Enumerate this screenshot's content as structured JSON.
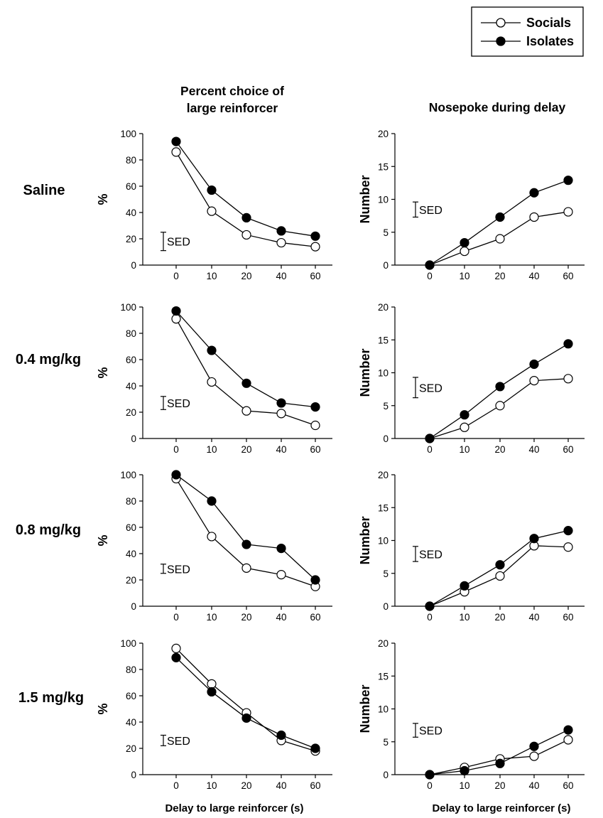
{
  "legend": {
    "items": [
      {
        "label": "Socials",
        "marker": "open-circle"
      },
      {
        "label": "Isolates",
        "marker": "filled-circle"
      }
    ]
  },
  "column_titles": {
    "left_line1": "Percent choice of",
    "left_line2": "large reinforcer",
    "right": "Nosepoke during delay"
  },
  "row_labels": [
    "Saline",
    "0.4 mg/kg",
    "0.8 mg/kg",
    "1.5 mg/kg"
  ],
  "axis_text": {
    "left_ylabel": "%",
    "right_ylabel": "Number",
    "xlabel": "Delay to large reinforcer (s)",
    "sed_label": "SED",
    "x_ticks": [
      "0",
      "10",
      "20",
      "40",
      "60"
    ],
    "left_yticks": [
      "0",
      "20",
      "40",
      "60",
      "80",
      "100"
    ],
    "right_yticks": [
      "0",
      "5",
      "10",
      "15",
      "20"
    ]
  },
  "colors": {
    "socials_fill": "#ffffff",
    "isolates_fill": "#000000",
    "line": "#000000"
  },
  "chart_data": [
    {
      "type": "line",
      "row": "Saline",
      "panel": "Percent choice of large reinforcer",
      "categories": [
        "0",
        "10",
        "20",
        "40",
        "60"
      ],
      "ylabel": "%",
      "ylim": [
        0,
        100
      ],
      "series": [
        {
          "name": "Socials",
          "values": [
            86,
            41,
            23,
            17,
            14
          ]
        },
        {
          "name": "Isolates",
          "values": [
            94,
            57,
            36,
            26,
            22
          ]
        }
      ],
      "sed": [
        11,
        25
      ]
    },
    {
      "type": "line",
      "row": "Saline",
      "panel": "Nosepoke during delay",
      "categories": [
        "0",
        "10",
        "20",
        "40",
        "60"
      ],
      "ylabel": "Number",
      "ylim": [
        0,
        20
      ],
      "series": [
        {
          "name": "Socials",
          "values": [
            0,
            2.1,
            4.0,
            7.3,
            8.1
          ]
        },
        {
          "name": "Isolates",
          "values": [
            0,
            3.4,
            7.3,
            11.0,
            12.9
          ]
        }
      ],
      "sed": [
        7.3,
        9.6
      ]
    },
    {
      "type": "line",
      "row": "0.4 mg/kg",
      "panel": "Percent choice of large reinforcer",
      "categories": [
        "0",
        "10",
        "20",
        "40",
        "60"
      ],
      "ylabel": "%",
      "ylim": [
        0,
        100
      ],
      "series": [
        {
          "name": "Socials",
          "values": [
            91,
            43,
            21,
            19,
            10
          ]
        },
        {
          "name": "Isolates",
          "values": [
            97,
            67,
            42,
            27,
            24
          ]
        }
      ],
      "sed": [
        22,
        32
      ]
    },
    {
      "type": "line",
      "row": "0.4 mg/kg",
      "panel": "Nosepoke during delay",
      "categories": [
        "0",
        "10",
        "20",
        "40",
        "60"
      ],
      "ylabel": "Number",
      "ylim": [
        0,
        20
      ],
      "series": [
        {
          "name": "Socials",
          "values": [
            0,
            1.7,
            5.0,
            8.8,
            9.1
          ]
        },
        {
          "name": "Isolates",
          "values": [
            0,
            3.6,
            7.9,
            11.3,
            14.4
          ]
        }
      ],
      "sed": [
        6.2,
        9.3
      ]
    },
    {
      "type": "line",
      "row": "0.8 mg/kg",
      "panel": "Percent choice of large reinforcer",
      "categories": [
        "0",
        "10",
        "20",
        "40",
        "60"
      ],
      "ylabel": "%",
      "ylim": [
        0,
        100
      ],
      "series": [
        {
          "name": "Socials",
          "values": [
            97,
            53,
            29,
            24,
            15
          ]
        },
        {
          "name": "Isolates",
          "values": [
            100,
            80,
            47,
            44,
            20
          ]
        }
      ],
      "sed": [
        25,
        32
      ]
    },
    {
      "type": "line",
      "row": "0.8 mg/kg",
      "panel": "Nosepoke during delay",
      "categories": [
        "0",
        "10",
        "20",
        "40",
        "60"
      ],
      "ylabel": "Number",
      "ylim": [
        0,
        20
      ],
      "series": [
        {
          "name": "Socials",
          "values": [
            0,
            2.2,
            4.6,
            9.2,
            9.0
          ]
        },
        {
          "name": "Isolates",
          "values": [
            0,
            3.1,
            6.3,
            10.3,
            11.5
          ]
        }
      ],
      "sed": [
        6.8,
        9.1
      ]
    },
    {
      "type": "line",
      "row": "1.5 mg/kg",
      "panel": "Percent choice of large reinforcer",
      "categories": [
        "0",
        "10",
        "20",
        "40",
        "60"
      ],
      "ylabel": "%",
      "ylim": [
        0,
        100
      ],
      "series": [
        {
          "name": "Socials",
          "values": [
            96,
            69,
            47,
            26,
            18
          ]
        },
        {
          "name": "Isolates",
          "values": [
            89,
            63,
            43,
            30,
            20
          ]
        }
      ],
      "sed": [
        22,
        30
      ]
    },
    {
      "type": "line",
      "row": "1.5 mg/kg",
      "panel": "Nosepoke during delay",
      "categories": [
        "0",
        "10",
        "20",
        "40",
        "60"
      ],
      "ylabel": "Number",
      "ylim": [
        0,
        20
      ],
      "series": [
        {
          "name": "Socials",
          "values": [
            0,
            1.1,
            2.4,
            2.8,
            5.3
          ]
        },
        {
          "name": "Isolates",
          "values": [
            0,
            0.6,
            1.7,
            4.3,
            6.8
          ]
        }
      ],
      "sed": [
        5.7,
        7.8
      ]
    }
  ]
}
